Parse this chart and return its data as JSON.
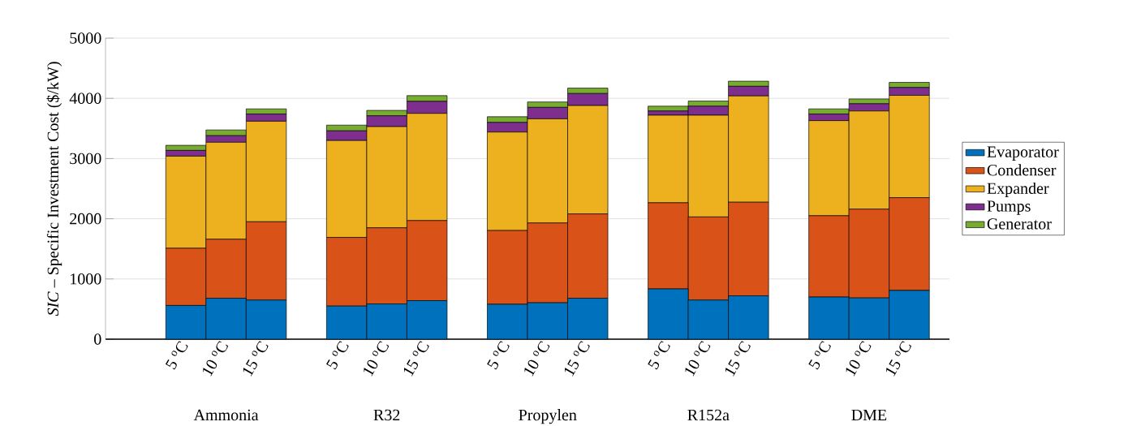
{
  "chart_data": {
    "type": "bar",
    "stacked": true,
    "ylabel": "*SIC* – Specific Investment Cost ($/kW)",
    "categories": [
      "5 $^{o}$C",
      "10 $^{o}$C",
      "15 $^{o}$C",
      null,
      "5 $^{o}$C",
      "10 $^{o}$C",
      "15 $^{o}$C",
      null,
      "5 $^{o}$C",
      "10 $^{o}$C",
      "15 $^{o}$C",
      null,
      "5 $^{o}$C",
      "10 $^{o}$C",
      "15 $^{o}$C",
      null,
      "5 $^{o}$C",
      "10 $^{o}$C",
      "15 $^{o}$C"
    ],
    "series": [
      {
        "name": "Evaporator",
        "color": "#0072bd",
        "values": [
          560,
          680,
          650,
          null,
          550,
          585,
          640,
          null,
          580,
          605,
          680,
          null,
          835,
          650,
          720,
          null,
          700,
          685,
          810
        ]
      },
      {
        "name": "Condenser",
        "color": "#d95319",
        "values": [
          950,
          980,
          1300,
          null,
          1140,
          1265,
          1330,
          null,
          1225,
          1325,
          1400,
          null,
          1430,
          1380,
          1555,
          null,
          1350,
          1475,
          1540
        ]
      },
      {
        "name": "Expander",
        "color": "#edb120",
        "values": [
          1530,
          1610,
          1670,
          null,
          1610,
          1680,
          1780,
          null,
          1635,
          1730,
          1800,
          null,
          1455,
          1690,
          1765,
          null,
          1580,
          1630,
          1700
        ]
      },
      {
        "name": "Pumps",
        "color": "#7e2f8e",
        "values": [
          95,
          110,
          120,
          null,
          160,
          180,
          200,
          null,
          160,
          190,
          200,
          null,
          70,
          150,
          160,
          null,
          110,
          120,
          130
        ]
      },
      {
        "name": "Generator",
        "color": "#77ac30",
        "values": [
          85,
          95,
          85,
          null,
          95,
          90,
          95,
          null,
          95,
          90,
          90,
          null,
          80,
          85,
          85,
          null,
          85,
          80,
          85
        ]
      }
    ],
    "annotations": [
      "Ammonia",
      "R32",
      "Propylen",
      "R152a",
      "DME"
    ],
    "ylim": [
      0,
      5000
    ],
    "yticks": [
      0,
      1000,
      2000,
      3000,
      4000,
      5000
    ],
    "grid": "y",
    "legend": "right"
  }
}
